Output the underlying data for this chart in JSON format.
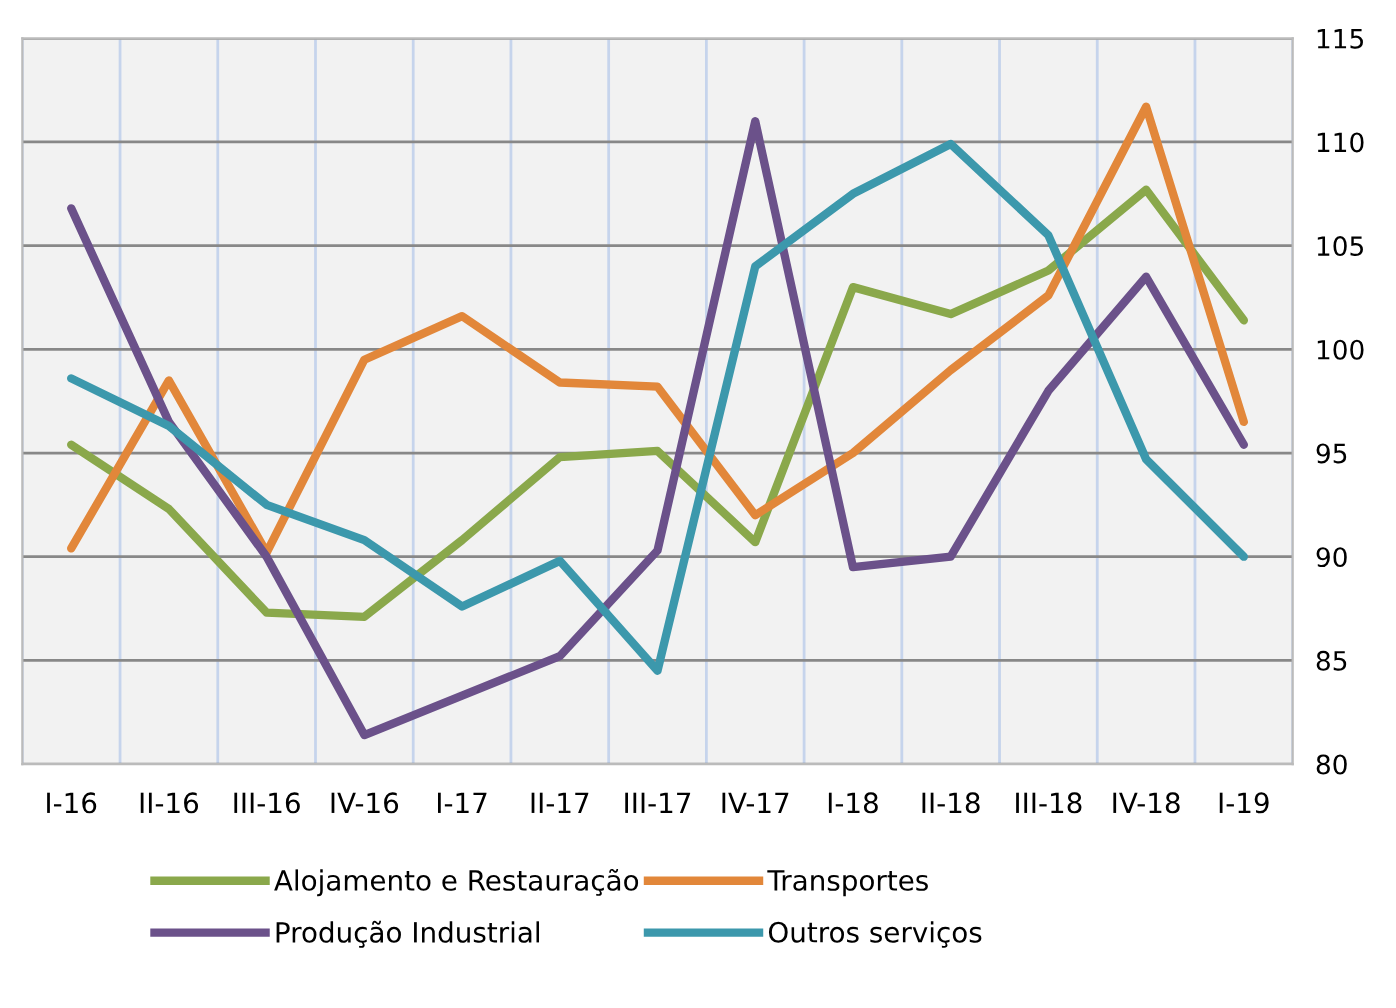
{
  "chart_data": {
    "type": "line",
    "categories": [
      "I-16",
      "II-16",
      "III-16",
      "IV-16",
      "I-17",
      "II-17",
      "III-17",
      "IV-17",
      "I-18",
      "II-18",
      "III-18",
      "IV-18",
      "I-19"
    ],
    "series": [
      {
        "name": "Alojamento e Restauração",
        "color": "#8aa84b",
        "values": [
          95.4,
          92.3,
          87.3,
          87.1,
          90.8,
          94.8,
          95.1,
          90.7,
          103.0,
          101.7,
          103.8,
          107.7,
          101.4
        ]
      },
      {
        "name": "Transportes",
        "color": "#e2873a",
        "values": [
          90.4,
          98.5,
          90.2,
          99.5,
          101.6,
          98.4,
          98.2,
          92.0,
          95.0,
          99.0,
          102.6,
          111.7,
          96.5
        ]
      },
      {
        "name": "Produção Industrial",
        "color": "#6b518a",
        "values": [
          106.8,
          96.5,
          90.0,
          81.4,
          83.3,
          85.2,
          90.3,
          111.0,
          89.5,
          90.0,
          98.0,
          103.5,
          95.4
        ]
      },
      {
        "name": "Outros serviços",
        "color": "#3c98ac",
        "values": [
          98.6,
          96.3,
          92.5,
          90.8,
          87.6,
          89.8,
          84.5,
          104.0,
          107.5,
          109.9,
          105.5,
          94.7,
          90.0
        ]
      }
    ],
    "ylim": [
      80,
      115
    ],
    "yticks": [
      80,
      85,
      90,
      95,
      100,
      105,
      110,
      115
    ],
    "grid": true,
    "legend": "bottom",
    "marker": "none",
    "line_style": "solid"
  }
}
